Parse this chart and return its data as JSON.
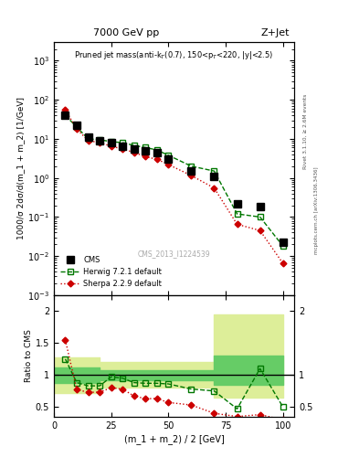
{
  "title_top": "7000 GeV pp",
  "title_right": "Z+Jet",
  "ylabel_main": "1000/σ 2dσ/d(m_1 + m_2) [1/GeV]",
  "ylabel_ratio": "Ratio to CMS",
  "xlabel": "(m_1 + m_2) / 2 [GeV]",
  "watermark": "CMS_2013_I1224539",
  "right_label": "mcplots.cern.ch [arXiv:1306.3436]",
  "rivet_label": "Rivet 3.1.10, ≥ 2.6M events",
  "cms_x": [
    5,
    10,
    15,
    20,
    25,
    30,
    35,
    40,
    45,
    50,
    60,
    70,
    80,
    90,
    100
  ],
  "cms_y": [
    40,
    22,
    11.0,
    9.0,
    8.0,
    6.5,
    5.5,
    5.0,
    4.5,
    3.0,
    1.5,
    1.1,
    0.22,
    0.18,
    0.022
  ],
  "herwig_x": [
    5,
    10,
    15,
    20,
    25,
    30,
    35,
    40,
    45,
    50,
    60,
    70,
    80,
    90,
    100
  ],
  "herwig_y": [
    40,
    20,
    10,
    9.5,
    8.5,
    8.0,
    6.8,
    6.0,
    5.2,
    3.8,
    2.0,
    1.5,
    0.12,
    0.1,
    0.018
  ],
  "sherpa_x": [
    5,
    10,
    15,
    20,
    25,
    30,
    35,
    40,
    45,
    50,
    60,
    70,
    80,
    90,
    100
  ],
  "sherpa_y": [
    55,
    18,
    9.0,
    8.0,
    6.5,
    5.5,
    4.5,
    3.5,
    3.0,
    2.2,
    1.15,
    0.55,
    0.065,
    0.045,
    0.0065
  ],
  "herwig_ratio_x": [
    5,
    10,
    15,
    20,
    25,
    30,
    35,
    40,
    45,
    50,
    60,
    70,
    80,
    90,
    100
  ],
  "herwig_ratio_y": [
    1.25,
    0.88,
    0.83,
    0.83,
    0.97,
    0.95,
    0.88,
    0.87,
    0.87,
    0.86,
    0.78,
    0.75,
    0.47,
    1.1,
    0.5
  ],
  "sherpa_ratio_x": [
    5,
    10,
    15,
    20,
    25,
    30,
    35,
    40,
    45,
    50,
    60,
    70,
    80,
    90,
    100
  ],
  "sherpa_ratio_y": [
    1.55,
    0.77,
    0.73,
    0.73,
    0.8,
    0.78,
    0.67,
    0.63,
    0.63,
    0.57,
    0.53,
    0.4,
    0.35,
    0.38,
    0.3
  ],
  "band_x": [
    0,
    10,
    20,
    30,
    40,
    50,
    60,
    70,
    80,
    100
  ],
  "band_inner_lo": [
    0.88,
    0.88,
    0.92,
    0.92,
    0.92,
    0.92,
    0.92,
    0.85,
    0.85,
    0.85
  ],
  "band_inner_hi": [
    1.12,
    1.12,
    1.08,
    1.08,
    1.08,
    1.08,
    1.08,
    1.3,
    1.3,
    1.3
  ],
  "band_outer_lo": [
    0.72,
    0.72,
    0.8,
    0.8,
    0.8,
    0.8,
    0.8,
    0.65,
    0.65,
    0.65
  ],
  "band_outer_hi": [
    1.28,
    1.28,
    1.2,
    1.2,
    1.2,
    1.2,
    1.2,
    1.95,
    1.95,
    1.95
  ],
  "ylim_main": [
    0.001,
    3000.0
  ],
  "ylim_ratio": [
    0.35,
    2.25
  ],
  "xlim": [
    0,
    105
  ],
  "color_cms": "#000000",
  "color_herwig": "#007700",
  "color_sherpa": "#cc0000",
  "color_band_inner": "#66cc66",
  "color_band_outer": "#ddee99"
}
